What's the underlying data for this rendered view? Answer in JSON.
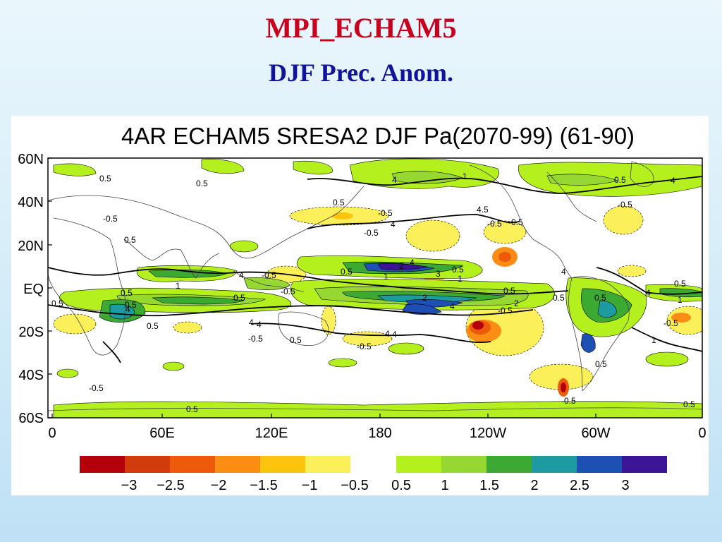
{
  "slide": {
    "title": "MPI_ECHAM5",
    "subtitle": "DJF Prec. Anom."
  },
  "map": {
    "title": "4AR ECHAM5 SRESA2 DJF Pa(2070-99)  (61-90)",
    "lat_labels": [
      "60N",
      "40N",
      "20N",
      "EQ",
      "20S",
      "40S",
      "60S"
    ],
    "lon_labels": [
      "0",
      "60E",
      "120E",
      "180",
      "120W",
      "60W",
      "0"
    ],
    "contour_labels": [
      "0.5",
      "0.5",
      "0.5",
      "-0.5",
      "-0.5",
      "1",
      "1",
      "4",
      "1",
      "0.5",
      "-0.5",
      "-0.5",
      "4",
      "4",
      "0.5",
      "1",
      "2",
      "3",
      "0.5",
      "1",
      "4",
      "-0.5",
      "0.5",
      "4",
      "0.5",
      "1",
      "0.5",
      "2",
      "4",
      "4",
      "-0.5",
      "0.5",
      "4",
      "2",
      "0.5",
      "1",
      "0.5",
      "1",
      "4",
      "0.5",
      "-0.5",
      "4",
      "-0.5",
      "1",
      "4",
      "0.5",
      "-0.5",
      "-0.5",
      "-0.5",
      "4.5",
      "0.5",
      "-0.5",
      "0.5",
      "4",
      "1",
      "-0.5",
      "-0.5",
      "0.5"
    ]
  },
  "colorbar": {
    "negative": {
      "labels": [
        "−3",
        "−2.5",
        "−2",
        "−1.5",
        "−1",
        "−0.5"
      ],
      "colors": [
        "#b4000a",
        "#d23c0a",
        "#ec5a0a",
        "#fb8c14",
        "#fcc30f",
        "#fcf05a"
      ]
    },
    "positive": {
      "labels": [
        "0.5",
        "1",
        "1.5",
        "2",
        "2.5",
        "3"
      ],
      "colors": [
        "#b4f01e",
        "#96d732",
        "#3caa32",
        "#1e9ba0",
        "#1e50b4",
        "#3c1496"
      ]
    }
  },
  "colors": {
    "title_red": "#c8001e",
    "subtitle_blue": "#10149c"
  }
}
